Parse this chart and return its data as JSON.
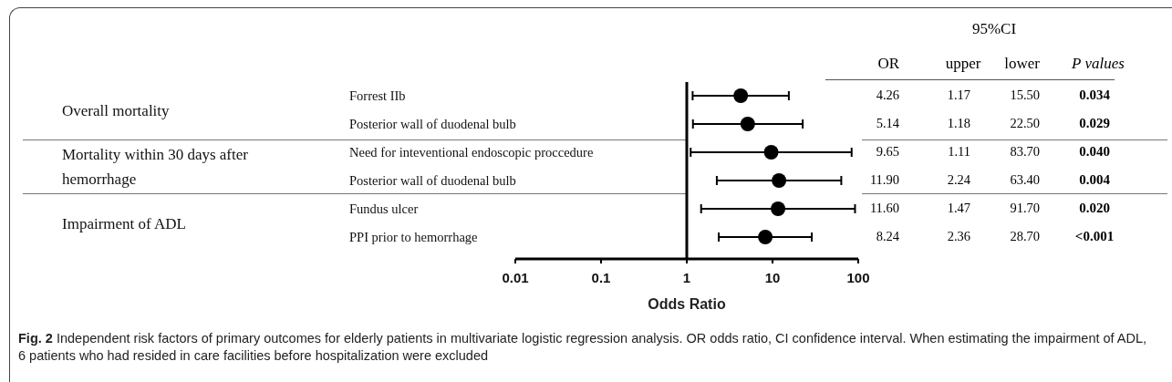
{
  "chart_data": {
    "type": "scatter",
    "orientation": "horizontal",
    "categories": [
      "Forrest IIb",
      "Posterior wall of duodenal bulb",
      "Need for inteventional endoscopic proccedure",
      "Posterior wall of duodenal bulb",
      "Fundus ulcer",
      "PPI prior to hemorrhage"
    ],
    "values": [
      4.26,
      5.14,
      9.65,
      11.9,
      11.6,
      8.24
    ],
    "errors": [
      [
        1.17,
        15.5
      ],
      [
        1.18,
        22.5
      ],
      [
        1.11,
        83.7
      ],
      [
        2.24,
        63.4
      ],
      [
        1.47,
        91.7
      ],
      [
        2.36,
        28.7
      ]
    ],
    "color": "#000000",
    "marker": "circle",
    "log": "x",
    "xlim": [
      0.01,
      100
    ],
    "xticks": [
      0.01,
      0.1,
      1,
      10,
      100
    ],
    "xlabel": "Odds Ratio",
    "grid": false,
    "legend": false,
    "ref_lines": [
      {
        "axis": "x",
        "value": 1
      }
    ],
    "annotations": [
      "95%CI",
      "OR",
      "upper",
      "lower",
      "P values",
      "4.26",
      "1.17",
      "15.50",
      "0.034",
      "5.14",
      "1.18",
      "22.50",
      "0.029",
      "9.65",
      "1.11",
      "83.70",
      "0.040",
      "11.90",
      "2.24",
      "63.40",
      "0.004",
      "11.60",
      "1.47",
      "91.70",
      "0.020",
      "8.24",
      "2.36",
      "28.70",
      "<0.001",
      "Overall mortality",
      "Mortality within 30 days after hemorrhage",
      "Impairment of ADL",
      "Fig. 2",
      "Independent risk factors of primary outcomes for elderly patients in multivariate logistic regression analysis. OR odds ratio, CI confidence interval. When estimating the impairment of ADL, 6 patients who had resided in care facilities before hospitalization were excluded"
    ]
  }
}
